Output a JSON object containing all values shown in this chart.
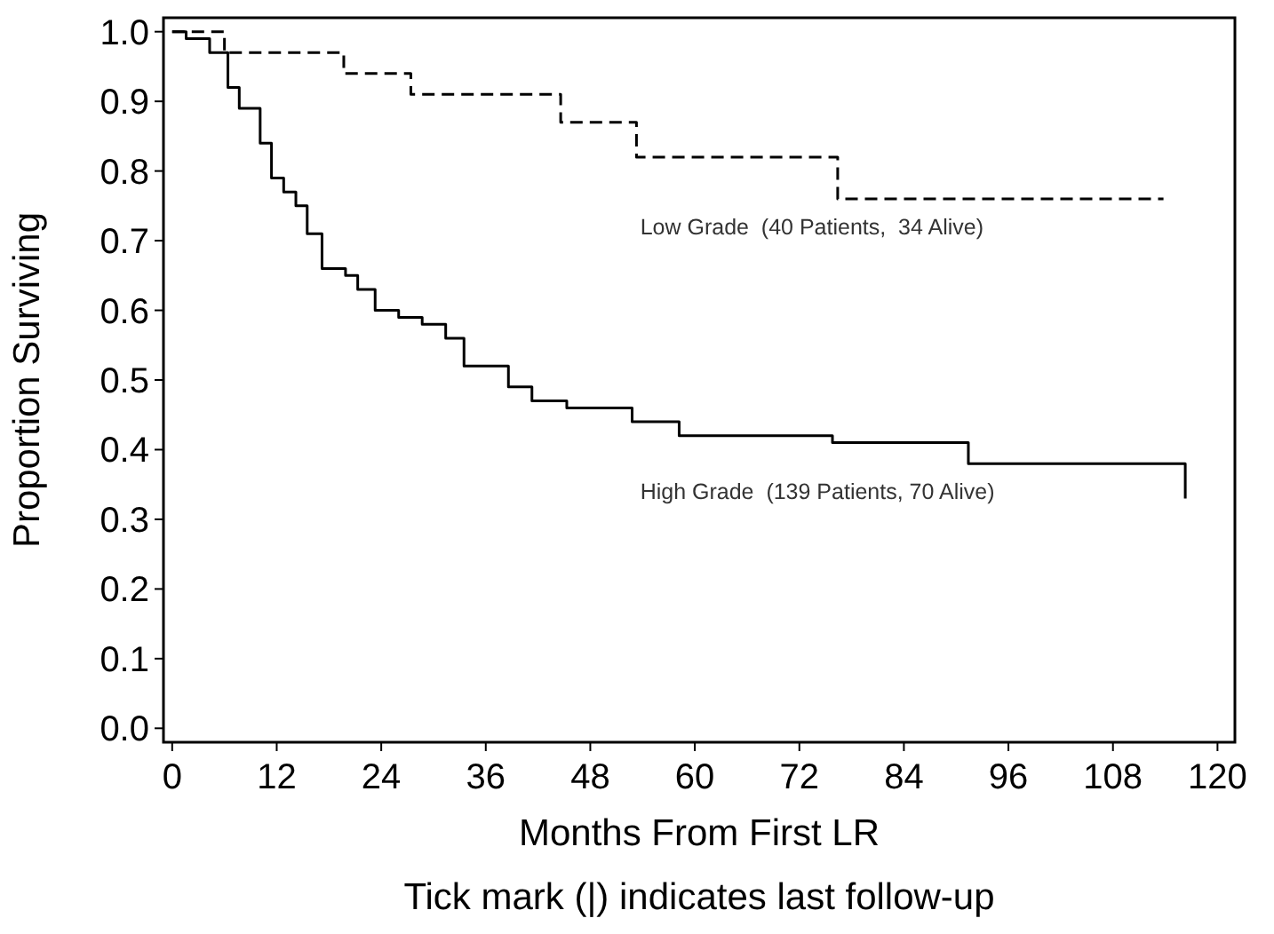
{
  "chart_data": {
    "type": "step",
    "xlabel": "Months From First LR",
    "ylabel": "Proportion Surviving",
    "annotations": [
      "Tick mark (|) indicates last follow-up"
    ],
    "xlim": [
      -1,
      122
    ],
    "ylim": [
      -0.02,
      1.02
    ],
    "xticks": [
      0,
      12,
      24,
      36,
      48,
      60,
      72,
      84,
      96,
      108,
      120
    ],
    "yticks": [
      {
        "value": 0,
        "label": "0.0"
      },
      {
        "value": 0.1,
        "label": "0.1"
      },
      {
        "value": 0.2,
        "label": "0.2"
      },
      {
        "value": 0.3,
        "label": "0.3"
      },
      {
        "value": 0.4,
        "label": "0.4"
      },
      {
        "value": 0.5,
        "label": "0.5"
      },
      {
        "value": 0.6,
        "label": "0.6"
      },
      {
        "value": 0.7,
        "label": "0.7"
      },
      {
        "value": 0.8,
        "label": "0.8"
      },
      {
        "value": 0.9,
        "label": "0.9"
      },
      {
        "value": 1,
        "label": "1.0"
      }
    ],
    "grid": false,
    "series": [
      {
        "name": "Low Grade  (40 Patients,  34 Alive)",
        "color": "#000000",
        "line_style": "dashed",
        "x": [
          0,
          6.0,
          19.7,
          27.4,
          44.6,
          53.3,
          76.4,
          113.8
        ],
        "values": [
          1,
          0.97,
          0.94,
          0.91,
          0.87,
          0.82,
          0.76,
          0.76
        ]
      },
      {
        "name": "High Grade  (139 Patients, 70 Alive)",
        "color": "#000000",
        "line_style": "solid",
        "x": [
          0,
          1.6,
          4.3,
          6.4,
          7.7,
          10.1,
          11.4,
          12.8,
          14.2,
          15.5,
          17.2,
          19.9,
          21.3,
          23.3,
          26.0,
          28.7,
          31.4,
          33.5,
          38.6,
          41.3,
          45.3,
          52.8,
          58.2,
          75.8,
          91.4,
          116.3,
          116.3
        ],
        "values": [
          1,
          0.99,
          0.97,
          0.92,
          0.89,
          0.84,
          0.79,
          0.77,
          0.75,
          0.71,
          0.66,
          0.65,
          0.63,
          0.6,
          0.59,
          0.58,
          0.56,
          0.52,
          0.49,
          0.47,
          0.46,
          0.44,
          0.42,
          0.41,
          0.38,
          0.38,
          0.33
        ]
      }
    ]
  }
}
